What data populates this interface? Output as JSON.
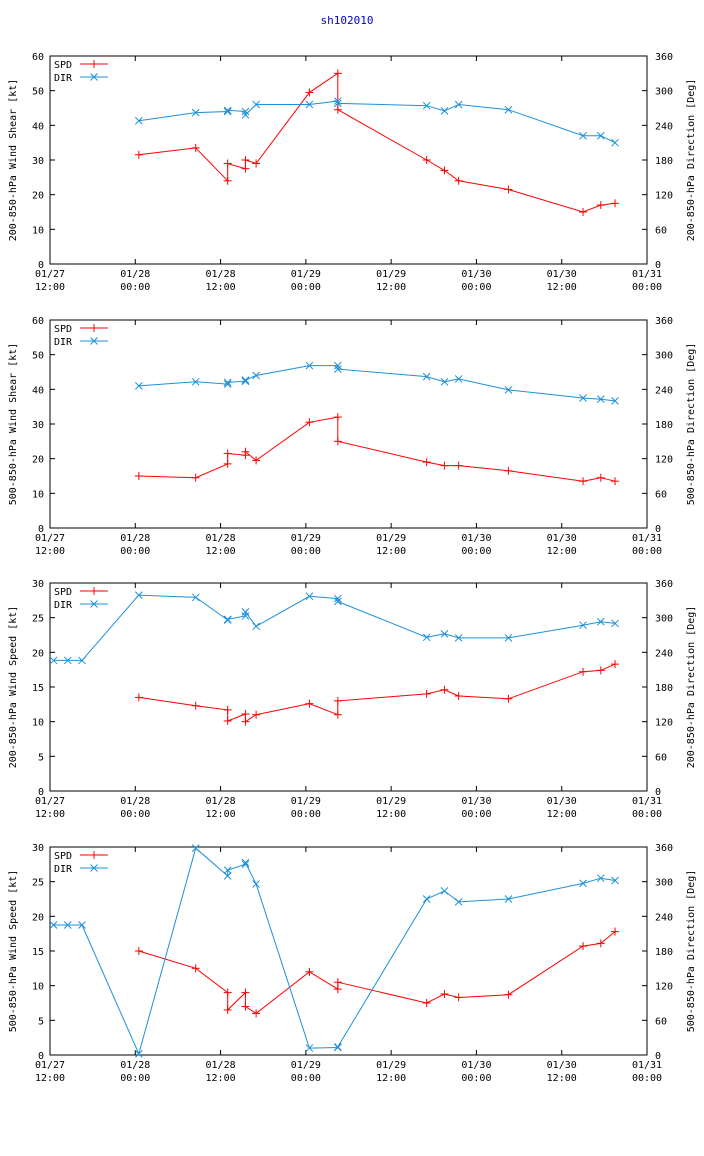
{
  "page_title": "sh102010",
  "colors": {
    "spd": "#ff0000",
    "dir": "#1e90d8",
    "axis": "#000000",
    "title": "#0000cc"
  },
  "chart_data": [
    {
      "type": "line",
      "title": "",
      "ylabel_left": "200-850-hPa Wind Shear [kt]",
      "ylabel_right": "200-850-hPa Direction [Deg]",
      "ylim_left": [
        0,
        60
      ],
      "ylim_right": [
        0,
        360
      ],
      "yticks_left": [
        "0",
        "10",
        "20",
        "30",
        "40",
        "50",
        "60"
      ],
      "yticks_right": [
        "0",
        "60",
        "120",
        "180",
        "240",
        "300",
        "360"
      ],
      "xlim_hours": [
        0,
        84
      ],
      "xticks": [
        {
          "date": "01/27",
          "time": "12:00"
        },
        {
          "date": "01/28",
          "time": "00:00"
        },
        {
          "date": "01/28",
          "time": "12:00"
        },
        {
          "date": "01/29",
          "time": "00:00"
        },
        {
          "date": "01/29",
          "time": "12:00"
        },
        {
          "date": "01/30",
          "time": "00:00"
        },
        {
          "date": "01/30",
          "time": "12:00"
        },
        {
          "date": "01/31",
          "time": "00:00"
        }
      ],
      "legend": [
        "SPD",
        "DIR"
      ],
      "series": [
        {
          "name": "SPD",
          "axis": "left",
          "x": [
            12.5,
            20.5,
            25,
            25,
            27.5,
            27.5,
            29,
            36.5,
            40.5,
            40.5,
            53,
            55.5,
            57.5,
            64.5,
            75,
            77.5,
            79.5
          ],
          "y": [
            31.5,
            33.5,
            24,
            29,
            27.5,
            30,
            29,
            49.5,
            55,
            44.5,
            30,
            27,
            24,
            21.5,
            15,
            17,
            17.5
          ]
        },
        {
          "name": "DIR",
          "axis": "right",
          "x": [
            12.5,
            20.5,
            25,
            25,
            27.5,
            27.5,
            29,
            36.5,
            40.5,
            40.5,
            53,
            55.5,
            57.5,
            64.5,
            75,
            77.5,
            79.5
          ],
          "y": [
            248,
            262,
            264,
            266,
            264,
            258,
            276,
            276,
            282,
            278,
            274,
            265,
            276,
            267,
            222,
            222,
            210
          ]
        }
      ]
    },
    {
      "type": "line",
      "title": "",
      "ylabel_left": "500-850-hPa Wind Shear [kt]",
      "ylabel_right": "500-850-hPa Direction [Deg]",
      "ylim_left": [
        0,
        60
      ],
      "ylim_right": [
        0,
        360
      ],
      "yticks_left": [
        "0",
        "10",
        "20",
        "30",
        "40",
        "50",
        "60"
      ],
      "yticks_right": [
        "0",
        "60",
        "120",
        "180",
        "240",
        "300",
        "360"
      ],
      "xlim_hours": [
        0,
        84
      ],
      "xticks": [
        {
          "date": "01/27",
          "time": "12:00"
        },
        {
          "date": "01/28",
          "time": "00:00"
        },
        {
          "date": "01/28",
          "time": "12:00"
        },
        {
          "date": "01/29",
          "time": "00:00"
        },
        {
          "date": "01/29",
          "time": "12:00"
        },
        {
          "date": "01/30",
          "time": "00:00"
        },
        {
          "date": "01/30",
          "time": "12:00"
        },
        {
          "date": "01/31",
          "time": "00:00"
        }
      ],
      "legend": [
        "SPD",
        "DIR"
      ],
      "series": [
        {
          "name": "SPD",
          "axis": "left",
          "x": [
            12.5,
            20.5,
            25,
            25,
            27.5,
            27.5,
            29,
            36.5,
            40.5,
            40.5,
            53,
            55.5,
            57.5,
            64.5,
            75,
            77.5,
            79.5
          ],
          "y": [
            15,
            14.5,
            18.5,
            21.5,
            21,
            22,
            19.5,
            30.5,
            32,
            25,
            19,
            18,
            18,
            16.5,
            13.5,
            14.5,
            13.5
          ]
        },
        {
          "name": "DIR",
          "axis": "right",
          "x": [
            12.5,
            20.5,
            25,
            25,
            27.5,
            27.5,
            29,
            36.5,
            40.5,
            40.5,
            53,
            55.5,
            57.5,
            64.5,
            75,
            77.5,
            79.5
          ],
          "y": [
            246,
            253,
            249,
            252,
            254,
            256,
            264,
            281,
            281,
            275,
            262,
            253,
            258,
            239,
            225,
            223,
            220
          ]
        }
      ]
    },
    {
      "type": "line",
      "title": "",
      "ylabel_left": "200-850-hPa Wind Speed [kt]",
      "ylabel_right": "200-850-hPa Direction [Deg]",
      "ylim_left": [
        0,
        30
      ],
      "ylim_right": [
        0,
        360
      ],
      "yticks_left": [
        "0",
        "5",
        "10",
        "15",
        "20",
        "25",
        "30"
      ],
      "yticks_right": [
        "0",
        "60",
        "120",
        "180",
        "240",
        "300",
        "360"
      ],
      "xlim_hours": [
        0,
        84
      ],
      "xticks": [
        {
          "date": "01/27",
          "time": "12:00"
        },
        {
          "date": "01/28",
          "time": "00:00"
        },
        {
          "date": "01/28",
          "time": "12:00"
        },
        {
          "date": "01/29",
          "time": "00:00"
        },
        {
          "date": "01/29",
          "time": "12:00"
        },
        {
          "date": "01/30",
          "time": "00:00"
        },
        {
          "date": "01/30",
          "time": "12:00"
        },
        {
          "date": "01/31",
          "time": "00:00"
        }
      ],
      "legend": [
        "SPD",
        "DIR"
      ],
      "series": [
        {
          "name": "SPD",
          "axis": "left",
          "x": [
            12.5,
            20.5,
            25,
            25,
            27.5,
            27.5,
            29,
            36.5,
            40.5,
            40.5,
            53,
            55.5,
            57.5,
            64.5,
            75,
            77.5,
            79.5
          ],
          "y": [
            13.5,
            12.3,
            11.7,
            10.1,
            11.1,
            10,
            11,
            12.6,
            11,
            13,
            14,
            14.6,
            13.7,
            13.3,
            17.2,
            17.4,
            18.3
          ]
        },
        {
          "name": "DIR",
          "axis": "right",
          "x": [
            0.5,
            2.5,
            4.5,
            12.5,
            20.5,
            25,
            25,
            27.5,
            27.5,
            29,
            36.5,
            40.5,
            40.5,
            53,
            55.5,
            57.5,
            64.5,
            75,
            77.5,
            79.5
          ],
          "y": [
            226,
            226,
            226,
            339,
            335,
            296,
            297,
            303,
            310,
            285,
            337,
            333,
            328,
            266,
            272,
            265,
            265,
            287,
            293,
            290
          ]
        }
      ]
    },
    {
      "type": "line",
      "title": "",
      "ylabel_left": "500-850-hPa Wind Speed [kt]",
      "ylabel_right": "500-850-hPa Direction [Deg]",
      "ylim_left": [
        0,
        30
      ],
      "ylim_right": [
        0,
        360
      ],
      "yticks_left": [
        "0",
        "5",
        "10",
        "15",
        "20",
        "25",
        "30"
      ],
      "yticks_right": [
        "0",
        "60",
        "120",
        "180",
        "240",
        "300",
        "360"
      ],
      "xlim_hours": [
        0,
        84
      ],
      "xticks": [
        {
          "date": "01/27",
          "time": "12:00"
        },
        {
          "date": "01/28",
          "time": "00:00"
        },
        {
          "date": "01/28",
          "time": "12:00"
        },
        {
          "date": "01/29",
          "time": "00:00"
        },
        {
          "date": "01/29",
          "time": "12:00"
        },
        {
          "date": "01/30",
          "time": "00:00"
        },
        {
          "date": "01/30",
          "time": "12:00"
        },
        {
          "date": "01/31",
          "time": "00:00"
        }
      ],
      "legend": [
        "SPD",
        "DIR"
      ],
      "series": [
        {
          "name": "SPD",
          "axis": "left",
          "x": [
            12.5,
            20.5,
            25,
            25,
            27.5,
            27.5,
            29,
            36.5,
            40.5,
            40.5,
            53,
            55.5,
            57.5,
            64.5,
            75,
            77.5,
            79.5
          ],
          "y": [
            15,
            12.5,
            9,
            6.5,
            9,
            7,
            6,
            12,
            9.5,
            10.5,
            7.5,
            8.8,
            8.3,
            8.7,
            15.7,
            16.1,
            17.8
          ]
        },
        {
          "name": "DIR",
          "axis": "right",
          "x": [
            0.5,
            2.5,
            4.5,
            12.5,
            20.5,
            25,
            25,
            27.5,
            27.5,
            29,
            36.5,
            40.5,
            40.5,
            53,
            55.5,
            57.5,
            64.5,
            75,
            77.5,
            79.5
          ],
          "y": [
            225,
            225,
            225,
            2,
            358,
            310,
            320,
            330,
            333,
            296,
            12,
            13,
            14,
            270,
            284,
            265,
            270,
            297,
            306,
            302
          ]
        }
      ]
    }
  ]
}
